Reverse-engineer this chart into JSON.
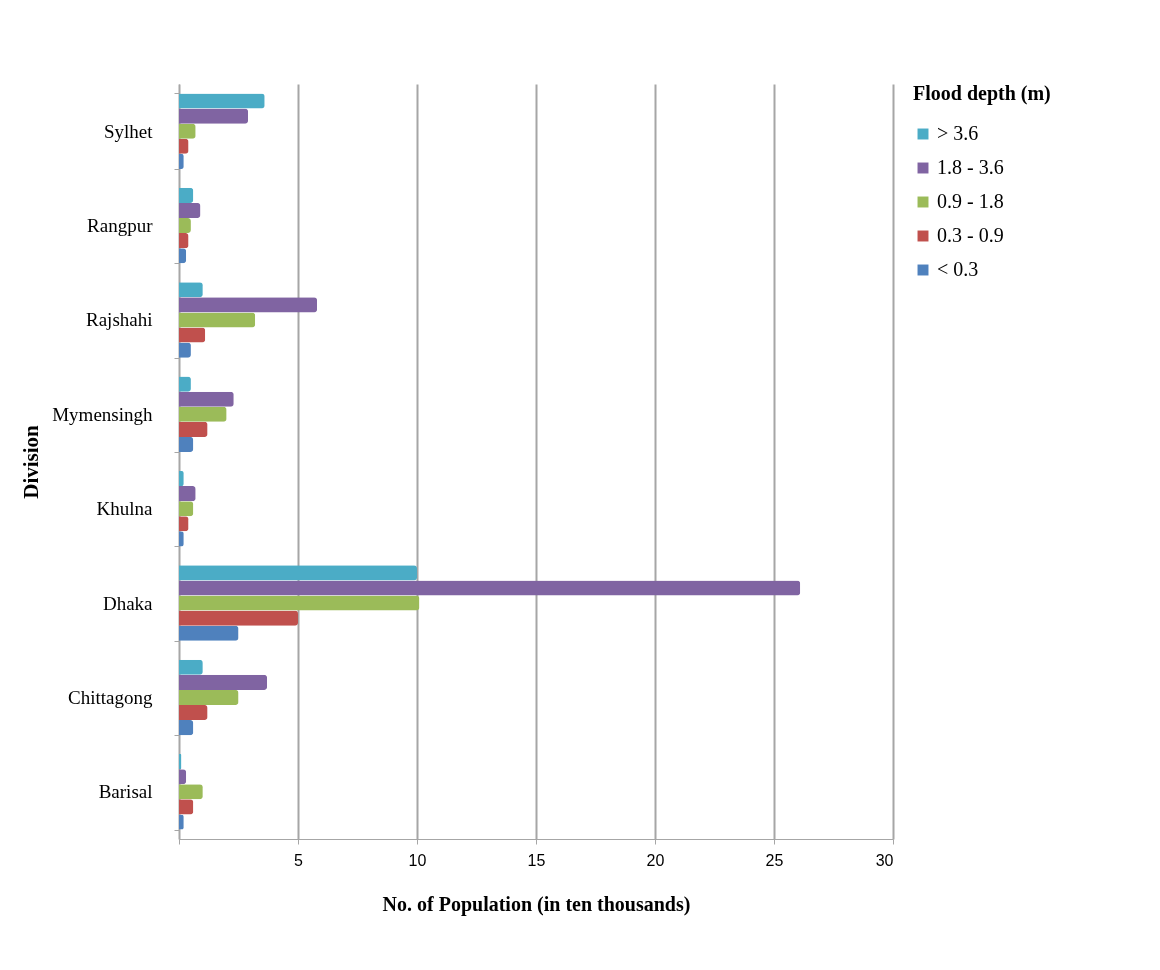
{
  "chart_data": {
    "type": "bar",
    "orientation": "horizontal",
    "xlabel": "No. of Population (in ten thousands)",
    "ylabel": "Division",
    "legend_title": "Flood depth (m)",
    "legend": "right",
    "grid": "x",
    "categories": [
      "Sylhet",
      "Rangpur",
      "Rajshahi",
      "Mymensingh",
      "Khulna",
      "Dhaka",
      "Chittagong",
      "Barisal"
    ],
    "xlim": [
      0,
      30
    ],
    "xticks": [
      {
        "value": 0,
        "label": null
      },
      5,
      10,
      15,
      20,
      25,
      30
    ],
    "series": [
      {
        "name": "> 3.6",
        "color": "#4bacc6",
        "values": [
          3.6,
          0.6,
          1.0,
          0.5,
          0.2,
          10.0,
          1.0,
          0.1
        ]
      },
      {
        "name": "1.8 - 3.6",
        "color": "#8064a2",
        "values": [
          2.9,
          0.9,
          5.8,
          2.3,
          0.7,
          26.1,
          3.7,
          0.3
        ]
      },
      {
        "name": "0.9 - 1.8",
        "color": "#9bbb59",
        "values": [
          0.7,
          0.5,
          3.2,
          2.0,
          0.6,
          10.1,
          2.5,
          1.0
        ]
      },
      {
        "name": "0.3 - 0.9",
        "color": "#c0504d",
        "values": [
          0.4,
          0.4,
          1.1,
          1.2,
          0.4,
          5.0,
          1.2,
          0.6
        ]
      },
      {
        "name": "< 0.3",
        "color": "#4f81bd",
        "values": [
          0.2,
          0.3,
          0.5,
          0.6,
          0.2,
          2.5,
          0.6,
          0.2
        ]
      }
    ]
  }
}
